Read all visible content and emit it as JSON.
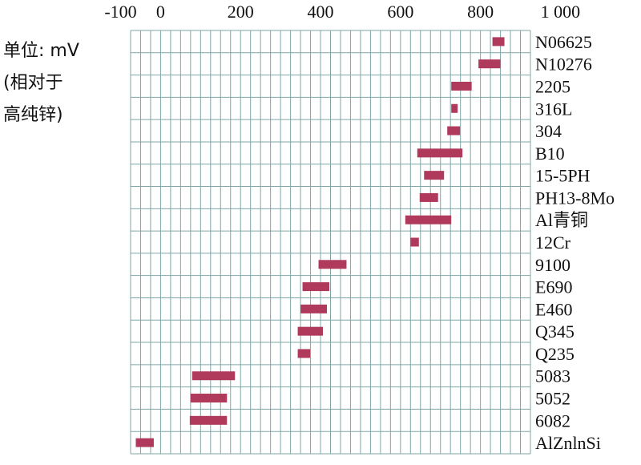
{
  "chart_data": {
    "type": "bar",
    "orientation": "horizontal-range",
    "unit_label": [
      "单位: mV",
      "(相对于",
      "高纯锌)"
    ],
    "x_ticks": [
      "-100",
      "0",
      "200",
      "400",
      "600",
      "800",
      "1 000"
    ],
    "x_tick_values": [
      -100,
      0,
      200,
      400,
      600,
      800,
      1000
    ],
    "xlim": [
      -75,
      925
    ],
    "grid": true,
    "bar_color": "#b03a5b",
    "grid_color": "#7fa7a7",
    "categories": [
      "N06625",
      "N10276",
      "2205",
      "316L",
      "304",
      "B10",
      "15-5PH",
      "PH13-8Mo",
      "Al青铜",
      "12Cr",
      "9100",
      "E690",
      "E460",
      "Q345",
      "Q235",
      "5083",
      "5052",
      "6082",
      "AlZnlnSi"
    ],
    "ranges": [
      [
        830,
        860
      ],
      [
        795,
        850
      ],
      [
        727,
        778
      ],
      [
        727,
        743
      ],
      [
        717,
        749
      ],
      [
        642,
        755
      ],
      [
        659,
        709
      ],
      [
        648,
        694
      ],
      [
        612,
        727
      ],
      [
        625,
        646
      ],
      [
        395,
        465
      ],
      [
        355,
        422
      ],
      [
        350,
        416
      ],
      [
        343,
        406
      ],
      [
        343,
        374
      ],
      [
        79,
        186
      ],
      [
        75,
        166
      ],
      [
        73,
        166
      ],
      [
        -62,
        -17
      ]
    ]
  }
}
